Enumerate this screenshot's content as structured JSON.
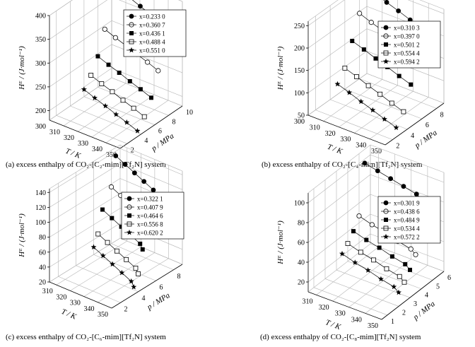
{
  "chart_data": [
    {
      "id": "a",
      "type": "scatter3d",
      "caption": "(a) excess enthalpy of CO₂-[C₂-mim][Tf₂N] system",
      "zlabel": "Hᴱ / (J·mol⁻¹)",
      "xlabel": "T / K",
      "ylabel": "p / MPa",
      "zticks": [
        "200",
        "250",
        "300",
        "350",
        "400"
      ],
      "zlim": [
        180,
        400
      ],
      "xticks": [
        "300",
        "310",
        "320",
        "330",
        "340",
        "350"
      ],
      "xlim": [
        300,
        350
      ],
      "yticks": [
        "2",
        "4",
        "6",
        "8",
        "10"
      ],
      "ylim": [
        1,
        10
      ],
      "grid": true,
      "legend": "top-right",
      "series": [
        {
          "label": "x=0.233 0",
          "marker": "circle-filled",
          "points": [
            [
              300,
              9.5,
              389
            ],
            [
              310,
              9.0,
              388
            ],
            [
              320,
              8.5,
              387
            ],
            [
              330,
              8.0,
              386
            ],
            [
              340,
              7.5,
              385
            ],
            [
              350,
              7.0,
              384
            ]
          ]
        },
        {
          "label": "x=0.360 7",
          "marker": "circle-open",
          "points": [
            [
              300,
              9.0,
              292
            ],
            [
              310,
              8.5,
              291
            ],
            [
              320,
              8.0,
              291
            ],
            [
              330,
              7.5,
              290
            ],
            [
              340,
              7.0,
              290
            ],
            [
              350,
              6.5,
              289
            ]
          ]
        },
        {
          "label": "x=0.436 1",
          "marker": "square-filled",
          "points": [
            [
              300,
              8.0,
              245
            ],
            [
              310,
              7.5,
              244
            ],
            [
              320,
              7.0,
              244
            ],
            [
              330,
              6.5,
              243
            ],
            [
              340,
              6.0,
              243
            ],
            [
              350,
              5.5,
              242
            ]
          ]
        },
        {
          "label": "x=0.488 4",
          "marker": "square-open",
          "points": [
            [
              300,
              7.0,
              215
            ],
            [
              310,
              6.5,
              214
            ],
            [
              320,
              6.0,
              214
            ],
            [
              330,
              5.5,
              213
            ],
            [
              340,
              5.0,
              213
            ],
            [
              350,
              4.5,
              212
            ]
          ]
        },
        {
          "label": "x=0.551 0",
          "marker": "star",
          "points": [
            [
              300,
              6.0,
              195
            ],
            [
              310,
              5.5,
              194
            ],
            [
              320,
              5.0,
              194
            ],
            [
              330,
              4.5,
              193
            ],
            [
              340,
              4.0,
              193
            ],
            [
              350,
              3.5,
              192
            ]
          ]
        }
      ]
    },
    {
      "id": "b",
      "type": "scatter3d",
      "caption": "(b) excess enthalpy of CO₂-[C₄-mim][Tf₂N] system",
      "zlabel": "Hᴱ / (J·mol⁻¹)",
      "xlabel": "T / K",
      "ylabel": "p / MPa",
      "zticks": [
        "50",
        "100",
        "150",
        "200",
        "250"
      ],
      "zlim": [
        50,
        260
      ],
      "xticks": [
        "300",
        "310",
        "320",
        "330",
        "340",
        "350"
      ],
      "xlim": [
        300,
        350
      ],
      "yticks": [
        "2",
        "4",
        "6",
        "8"
      ],
      "ylim": [
        1,
        9
      ],
      "grid": true,
      "legend": "top-right",
      "series": [
        {
          "label": "x=0.310 3",
          "marker": "circle-filled",
          "points": [
            [
              300,
              8.5,
              254
            ],
            [
              310,
              8.0,
              254
            ],
            [
              320,
              7.5,
              253
            ],
            [
              330,
              7.0,
              253
            ],
            [
              340,
              6.5,
              252
            ],
            [
              350,
              6.0,
              252
            ]
          ]
        },
        {
          "label": "x=0.397 0",
          "marker": "circle-open",
          "points": [
            [
              300,
              8.0,
              196
            ],
            [
              310,
              7.5,
              195
            ],
            [
              320,
              7.0,
              195
            ],
            [
              330,
              6.5,
              194
            ],
            [
              340,
              6.0,
              194
            ],
            [
              350,
              5.5,
              193
            ]
          ]
        },
        {
          "label": "x=0.501 2",
          "marker": "square-filled",
          "points": [
            [
              300,
              7.0,
              146
            ],
            [
              310,
              6.5,
              146
            ],
            [
              320,
              6.0,
              145
            ],
            [
              330,
              5.5,
              145
            ],
            [
              340,
              5.0,
              144
            ],
            [
              350,
              4.5,
              144
            ]
          ]
        },
        {
          "label": "x=0.554 4",
          "marker": "square-open",
          "points": [
            [
              300,
              6.0,
              97
            ],
            [
              310,
              5.5,
              97
            ],
            [
              320,
              5.0,
              96
            ],
            [
              330,
              4.5,
              96
            ],
            [
              340,
              4.0,
              95
            ],
            [
              350,
              3.5,
              95
            ]
          ]
        },
        {
          "label": "x=0.594 2",
          "marker": "star",
          "points": [
            [
              300,
              5.0,
              73
            ],
            [
              310,
              4.5,
              73
            ],
            [
              320,
              4.0,
              72
            ],
            [
              330,
              3.5,
              72
            ],
            [
              340,
              3.0,
              71
            ],
            [
              350,
              2.5,
              71
            ]
          ]
        }
      ]
    },
    {
      "id": "c",
      "type": "scatter3d",
      "caption": "(c) excess enthalpy of CO₂-[C₆-mim][Tf₂N] system",
      "zlabel": "Hᴱ / (J·mol⁻¹)",
      "xlabel": "T / K",
      "ylabel": "p / MPa",
      "zticks": [
        "20",
        "40",
        "60",
        "80",
        "100",
        "120",
        "140"
      ],
      "zlim": [
        20,
        145
      ],
      "xticks": [
        "310",
        "320",
        "330",
        "340",
        "350"
      ],
      "xlim": [
        305,
        350
      ],
      "yticks": [
        "2",
        "4",
        "6",
        "8"
      ],
      "ylim": [
        1,
        9
      ],
      "grid": true,
      "legend": "top-right",
      "series": [
        {
          "label": "x=0.322 1",
          "marker": "circle-filled",
          "points": [
            [
              305,
              8.5,
              134
            ],
            [
              315,
              8.0,
              134
            ],
            [
              325,
              7.5,
              134
            ],
            [
              335,
              7.0,
              134
            ],
            [
              345,
              6.5,
              134
            ],
            [
              350,
              6.0,
              134
            ]
          ]
        },
        {
          "label": "x=0.407 9",
          "marker": "circle-open",
          "points": [
            [
              305,
              8.0,
              96
            ],
            [
              315,
              7.5,
              96
            ],
            [
              325,
              7.0,
              96
            ],
            [
              335,
              6.5,
              96
            ],
            [
              345,
              6.0,
              96
            ],
            [
              350,
              5.5,
              96
            ]
          ]
        },
        {
          "label": "x=0.464 6",
          "marker": "square-filled",
          "points": [
            [
              305,
              7.0,
              73
            ],
            [
              315,
              6.5,
              73
            ],
            [
              325,
              6.0,
              73
            ],
            [
              335,
              5.5,
              73
            ],
            [
              345,
              5.0,
              73
            ],
            [
              350,
              4.5,
              73
            ]
          ]
        },
        {
          "label": "x=0.556 8",
          "marker": "square-open",
          "points": [
            [
              305,
              6.5,
              44
            ],
            [
              315,
              6.0,
              44
            ],
            [
              325,
              5.5,
              44
            ],
            [
              335,
              5.0,
              44
            ],
            [
              345,
              4.5,
              44
            ],
            [
              350,
              4.0,
              44
            ]
          ]
        },
        {
          "label": "x=0.620 2",
          "marker": "star",
          "points": [
            [
              305,
              6.0,
              30
            ],
            [
              315,
              5.5,
              30
            ],
            [
              325,
              5.0,
              30
            ],
            [
              335,
              4.5,
              30
            ],
            [
              345,
              4.0,
              30
            ],
            [
              350,
              3.5,
              30
            ]
          ]
        }
      ]
    },
    {
      "id": "d",
      "type": "scatter3d",
      "caption": "(d) excess enthalpy of CO₂-[C₈-mim][Tf₂N] system",
      "zlabel": "Hᴱ / (J·mol⁻¹)",
      "xlabel": "T / K",
      "ylabel": "p / MPa",
      "zticks": [
        "20",
        "40",
        "60",
        "80",
        "100"
      ],
      "zlim": [
        10,
        110
      ],
      "xticks": [
        "310",
        "320",
        "330",
        "340",
        "350"
      ],
      "xlim": [
        305,
        350
      ],
      "yticks": [
        "1",
        "2",
        "3",
        "4",
        "5",
        "6"
      ],
      "ylim": [
        0.5,
        6
      ],
      "grid": true,
      "legend": "top-right",
      "series": [
        {
          "label": "x=0.301 9",
          "marker": "circle-filled",
          "points": [
            [
              305,
              5.5,
              96
            ],
            [
              315,
              5.2,
              97
            ],
            [
              325,
              4.9,
              98
            ],
            [
              335,
              4.6,
              99
            ],
            [
              345,
              4.3,
              100
            ],
            [
              350,
              4.0,
              101
            ]
          ]
        },
        {
          "label": "x=0.438 6",
          "marker": "circle-open",
          "points": [
            [
              305,
              5.0,
              47
            ],
            [
              315,
              4.7,
              47
            ],
            [
              325,
              4.4,
              48
            ],
            [
              335,
              4.1,
              48
            ],
            [
              345,
              3.8,
              49
            ],
            [
              350,
              3.5,
              49
            ]
          ]
        },
        {
          "label": "x=0.484 9",
          "marker": "square-filled",
          "points": [
            [
              305,
              4.5,
              36
            ],
            [
              315,
              4.2,
              36
            ],
            [
              325,
              3.9,
              37
            ],
            [
              335,
              3.6,
              37
            ],
            [
              345,
              3.3,
              38
            ],
            [
              350,
              3.0,
              38
            ]
          ]
        },
        {
          "label": "x=0.534 4",
          "marker": "square-open",
          "points": [
            [
              305,
              4.0,
              28
            ],
            [
              315,
              3.7,
              28
            ],
            [
              325,
              3.4,
              29
            ],
            [
              335,
              3.1,
              29
            ],
            [
              345,
              2.8,
              30
            ],
            [
              350,
              2.5,
              30
            ]
          ]
        },
        {
          "label": "x=0.572 2",
          "marker": "star",
          "points": [
            [
              305,
              3.5,
              22
            ],
            [
              315,
              3.2,
              22
            ],
            [
              325,
              2.9,
              23
            ],
            [
              335,
              2.6,
              23
            ],
            [
              345,
              2.3,
              24
            ],
            [
              350,
              2.0,
              24
            ]
          ]
        }
      ]
    }
  ]
}
